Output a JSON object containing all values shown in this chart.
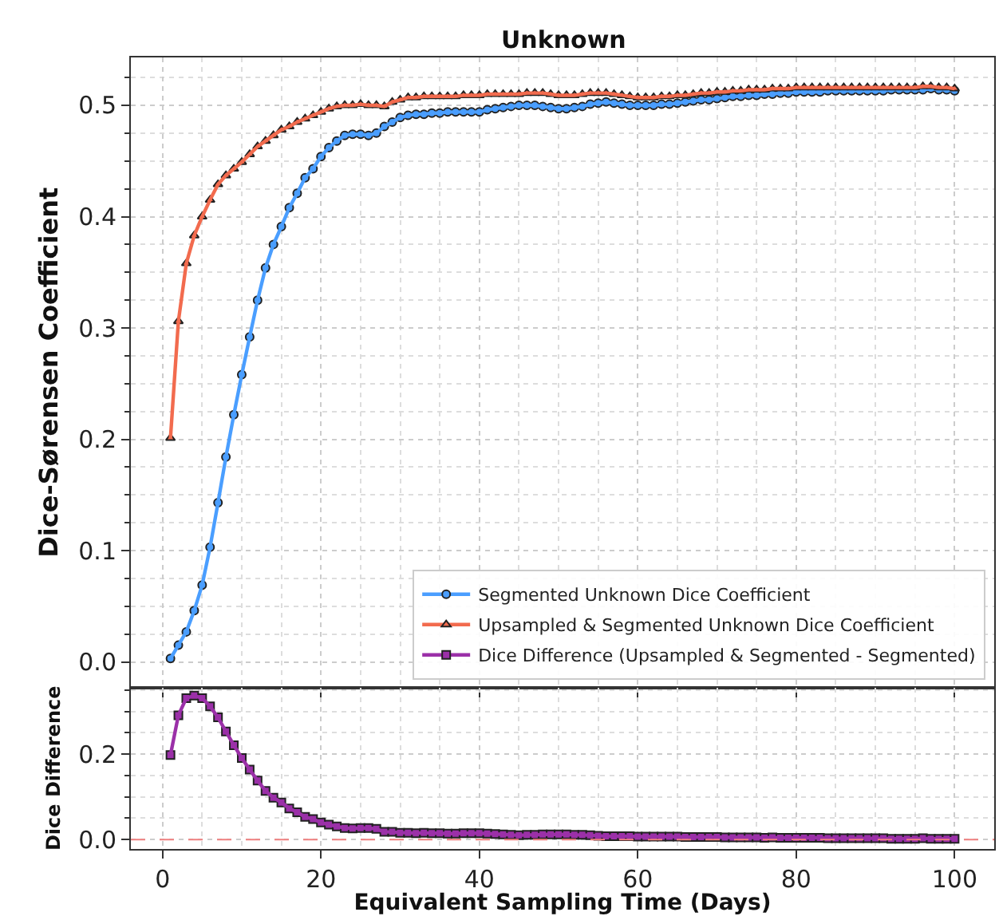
{
  "chart_data": [
    {
      "type": "line",
      "title": "Unknown",
      "ylabel": "Dice-Sørensen Coefficient",
      "xlim": [
        -4,
        105
      ],
      "xticks": [
        0,
        20,
        40,
        60,
        80,
        100
      ],
      "ylim": [
        -0.023,
        0.543
      ],
      "yticks": [
        {
          "value": 0,
          "label": "0.0"
        },
        {
          "value": 0.1,
          "label": "0.1"
        },
        {
          "value": 0.2,
          "label": "0.2"
        },
        {
          "value": 0.3,
          "label": "0.3"
        },
        {
          "value": 0.4,
          "label": "0.4"
        },
        {
          "value": 0.5,
          "label": "0.5"
        }
      ],
      "grid": true,
      "legend": "bottom right",
      "tick_labels": "y",
      "line_style": "solid",
      "series": [
        {
          "name": "Segmented Unknown Dice Coefficient",
          "color": "#4a9eff",
          "marker": "circle",
          "x": [
            1,
            2,
            3,
            4,
            5,
            6,
            7,
            8,
            9,
            10,
            11,
            12,
            13,
            14,
            15,
            16,
            17,
            18,
            19,
            20,
            21,
            22,
            23,
            24,
            25,
            26,
            27,
            28,
            29,
            30,
            31,
            32,
            33,
            34,
            35,
            36,
            37,
            38,
            39,
            40,
            41,
            42,
            43,
            44,
            45,
            46,
            47,
            48,
            49,
            50,
            51,
            52,
            53,
            54,
            55,
            56,
            57,
            58,
            59,
            60,
            61,
            62,
            63,
            64,
            65,
            66,
            67,
            68,
            69,
            70,
            71,
            72,
            73,
            74,
            75,
            76,
            77,
            78,
            79,
            80,
            81,
            82,
            83,
            84,
            85,
            86,
            87,
            88,
            89,
            90,
            91,
            92,
            93,
            94,
            95,
            96,
            97,
            98,
            99,
            100
          ],
          "values": [
            0.003,
            0.015,
            0.027,
            0.046,
            0.069,
            0.103,
            0.143,
            0.184,
            0.222,
            0.258,
            0.292,
            0.325,
            0.354,
            0.375,
            0.391,
            0.408,
            0.421,
            0.435,
            0.443,
            0.454,
            0.462,
            0.468,
            0.473,
            0.474,
            0.474,
            0.473,
            0.475,
            0.481,
            0.485,
            0.489,
            0.491,
            0.492,
            0.492,
            0.493,
            0.493,
            0.494,
            0.494,
            0.494,
            0.494,
            0.494,
            0.496,
            0.497,
            0.498,
            0.499,
            0.5,
            0.5,
            0.5,
            0.499,
            0.498,
            0.497,
            0.497,
            0.498,
            0.499,
            0.501,
            0.502,
            0.503,
            0.502,
            0.501,
            0.5,
            0.5,
            0.5,
            0.5,
            0.501,
            0.501,
            0.502,
            0.503,
            0.504,
            0.505,
            0.505,
            0.506,
            0.507,
            0.508,
            0.508,
            0.509,
            0.509,
            0.51,
            0.51,
            0.511,
            0.511,
            0.512,
            0.512,
            0.512,
            0.512,
            0.513,
            0.513,
            0.513,
            0.513,
            0.513,
            0.513,
            0.513,
            0.513,
            0.514,
            0.514,
            0.514,
            0.514,
            0.514,
            0.515,
            0.514,
            0.514,
            0.513
          ]
        },
        {
          "name": "Upsampled & Segmented Unknown Dice Coefficient",
          "color": "#f26b4e",
          "marker": "triangle",
          "x": [
            1,
            2,
            3,
            4,
            5,
            6,
            7,
            8,
            9,
            10,
            11,
            12,
            13,
            14,
            15,
            16,
            17,
            18,
            19,
            20,
            21,
            22,
            23,
            24,
            25,
            26,
            27,
            28,
            29,
            30,
            31,
            32,
            33,
            34,
            35,
            36,
            37,
            38,
            39,
            40,
            41,
            42,
            43,
            44,
            45,
            46,
            47,
            48,
            49,
            50,
            51,
            52,
            53,
            54,
            55,
            56,
            57,
            58,
            59,
            60,
            61,
            62,
            63,
            64,
            65,
            66,
            67,
            68,
            69,
            70,
            71,
            72,
            73,
            74,
            75,
            76,
            77,
            78,
            79,
            80,
            81,
            82,
            83,
            84,
            85,
            86,
            87,
            88,
            89,
            90,
            91,
            92,
            93,
            94,
            95,
            96,
            97,
            98,
            99,
            100
          ],
          "values": [
            0.201,
            0.306,
            0.358,
            0.383,
            0.4,
            0.415,
            0.429,
            0.437,
            0.443,
            0.449,
            0.456,
            0.463,
            0.468,
            0.473,
            0.478,
            0.481,
            0.485,
            0.488,
            0.491,
            0.494,
            0.497,
            0.499,
            0.5,
            0.5,
            0.501,
            0.5,
            0.5,
            0.499,
            0.503,
            0.505,
            0.507,
            0.507,
            0.508,
            0.508,
            0.508,
            0.508,
            0.508,
            0.509,
            0.509,
            0.509,
            0.51,
            0.51,
            0.51,
            0.51,
            0.51,
            0.511,
            0.511,
            0.511,
            0.51,
            0.509,
            0.509,
            0.509,
            0.51,
            0.511,
            0.511,
            0.511,
            0.51,
            0.509,
            0.508,
            0.507,
            0.507,
            0.507,
            0.508,
            0.508,
            0.509,
            0.509,
            0.51,
            0.511,
            0.511,
            0.512,
            0.512,
            0.513,
            0.513,
            0.514,
            0.514,
            0.514,
            0.515,
            0.515,
            0.515,
            0.516,
            0.516,
            0.516,
            0.516,
            0.516,
            0.516,
            0.516,
            0.516,
            0.516,
            0.516,
            0.516,
            0.516,
            0.516,
            0.516,
            0.516,
            0.516,
            0.517,
            0.517,
            0.516,
            0.516,
            0.515
          ]
        }
      ]
    },
    {
      "type": "line",
      "xlabel": "Equivalent Sampling Time (Days)",
      "ylabel": "Dice Difference",
      "xlim": [
        -4,
        105
      ],
      "xticks": [
        0,
        20,
        40,
        60,
        80,
        100
      ],
      "ylim": [
        -0.022,
        0.356
      ],
      "yticks": [
        {
          "value": 0,
          "label": "0.0"
        },
        {
          "value": 0.2,
          "label": "0.2"
        }
      ],
      "grid": true,
      "line_style": "solid",
      "ref_lines": [
        {
          "axis": "y",
          "value": 0,
          "color": "#f08080",
          "line_style": "dashed"
        }
      ],
      "series": [
        {
          "name": "Dice Difference (Upsampled & Segmented - Segmented)",
          "color": "#9b30a8",
          "marker": "square",
          "x": [
            1,
            2,
            3,
            4,
            5,
            6,
            7,
            8,
            9,
            10,
            11,
            12,
            13,
            14,
            15,
            16,
            17,
            18,
            19,
            20,
            21,
            22,
            23,
            24,
            25,
            26,
            27,
            28,
            29,
            30,
            31,
            32,
            33,
            34,
            35,
            36,
            37,
            38,
            39,
            40,
            41,
            42,
            43,
            44,
            45,
            46,
            47,
            48,
            49,
            50,
            51,
            52,
            53,
            54,
            55,
            56,
            57,
            58,
            59,
            60,
            61,
            62,
            63,
            64,
            65,
            66,
            67,
            68,
            69,
            70,
            71,
            72,
            73,
            74,
            75,
            76,
            77,
            78,
            79,
            80,
            81,
            82,
            83,
            84,
            85,
            86,
            87,
            88,
            89,
            90,
            91,
            92,
            93,
            94,
            95,
            96,
            97,
            98,
            99,
            100
          ],
          "values": [
            0.198,
            0.291,
            0.331,
            0.337,
            0.331,
            0.312,
            0.286,
            0.253,
            0.221,
            0.191,
            0.164,
            0.138,
            0.114,
            0.098,
            0.087,
            0.073,
            0.064,
            0.053,
            0.048,
            0.04,
            0.035,
            0.031,
            0.027,
            0.026,
            0.027,
            0.027,
            0.025,
            0.018,
            0.018,
            0.016,
            0.016,
            0.015,
            0.016,
            0.015,
            0.015,
            0.014,
            0.014,
            0.015,
            0.015,
            0.015,
            0.014,
            0.013,
            0.012,
            0.011,
            0.01,
            0.011,
            0.011,
            0.012,
            0.012,
            0.012,
            0.012,
            0.011,
            0.011,
            0.01,
            0.009,
            0.008,
            0.008,
            0.008,
            0.008,
            0.007,
            0.007,
            0.007,
            0.007,
            0.007,
            0.007,
            0.006,
            0.006,
            0.006,
            0.006,
            0.006,
            0.005,
            0.005,
            0.005,
            0.005,
            0.005,
            0.004,
            0.005,
            0.004,
            0.004,
            0.004,
            0.004,
            0.004,
            0.004,
            0.003,
            0.003,
            0.003,
            0.003,
            0.003,
            0.003,
            0.003,
            0.003,
            0.002,
            0.002,
            0.002,
            0.002,
            0.003,
            0.002,
            0.002,
            0.002,
            0.002
          ]
        }
      ]
    }
  ]
}
